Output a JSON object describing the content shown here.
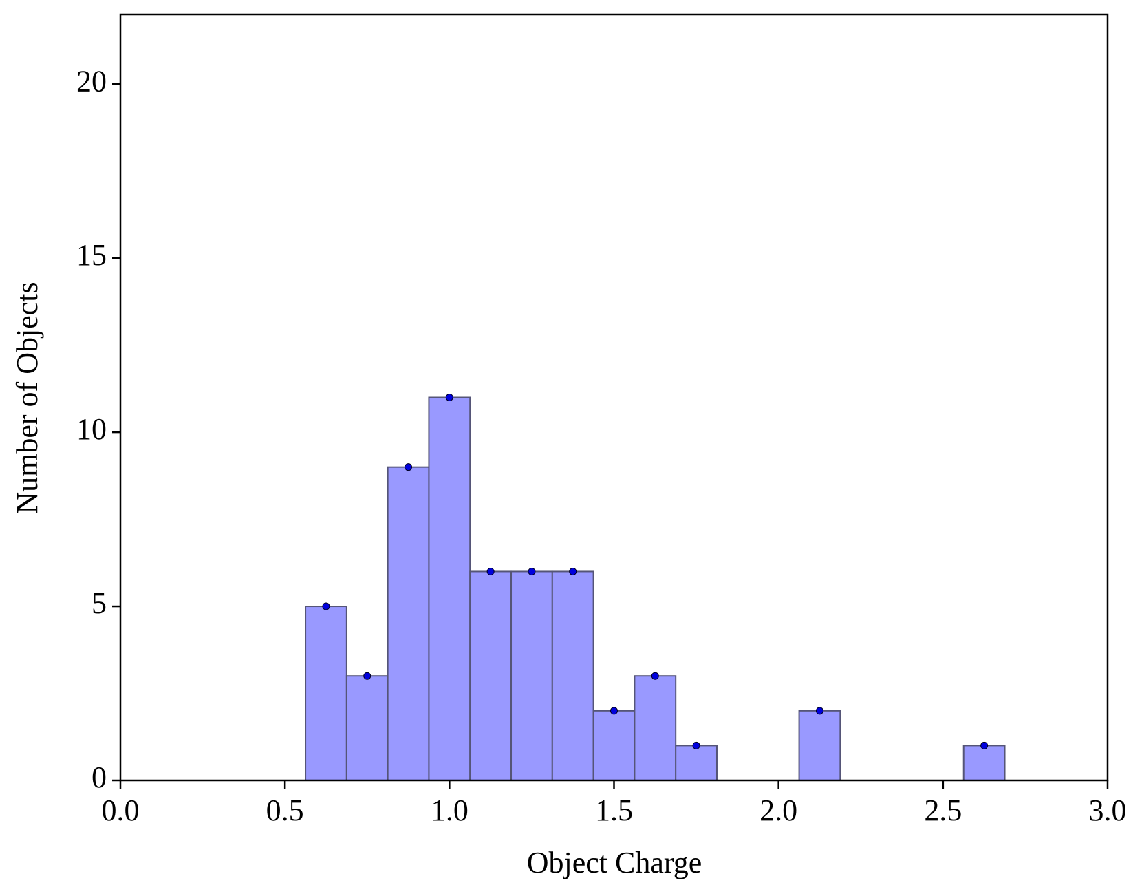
{
  "chart_data": {
    "type": "histogram",
    "xlabel": "Object Charge",
    "ylabel": "Number of Objects",
    "bins": [
      0.5625,
      0.6875,
      0.8125,
      0.9375,
      1.0625,
      1.1875,
      1.3125,
      1.4375,
      1.5625,
      1.6875,
      1.8125,
      1.9375,
      2.0625,
      2.1875,
      2.3125,
      2.4375,
      2.5625,
      2.6875
    ],
    "values": [
      5,
      3,
      9,
      11,
      6,
      6,
      6,
      2,
      3,
      1,
      0,
      0,
      2,
      0,
      0,
      0,
      1
    ],
    "color": "#9999ff",
    "edge_color": "#555577",
    "marker_color": "#0000dd",
    "xlim": [
      0,
      3
    ],
    "ylim": [
      0,
      22
    ],
    "xticks": [
      {
        "value": 0,
        "label": "0.0"
      },
      0.5,
      {
        "value": 1,
        "label": "1.0"
      },
      1.5,
      {
        "value": 2,
        "label": "2.0"
      },
      2.5,
      {
        "value": 3,
        "label": "3.0"
      }
    ],
    "yticks": [
      0,
      5,
      10,
      15,
      20
    ],
    "grid": false
  }
}
